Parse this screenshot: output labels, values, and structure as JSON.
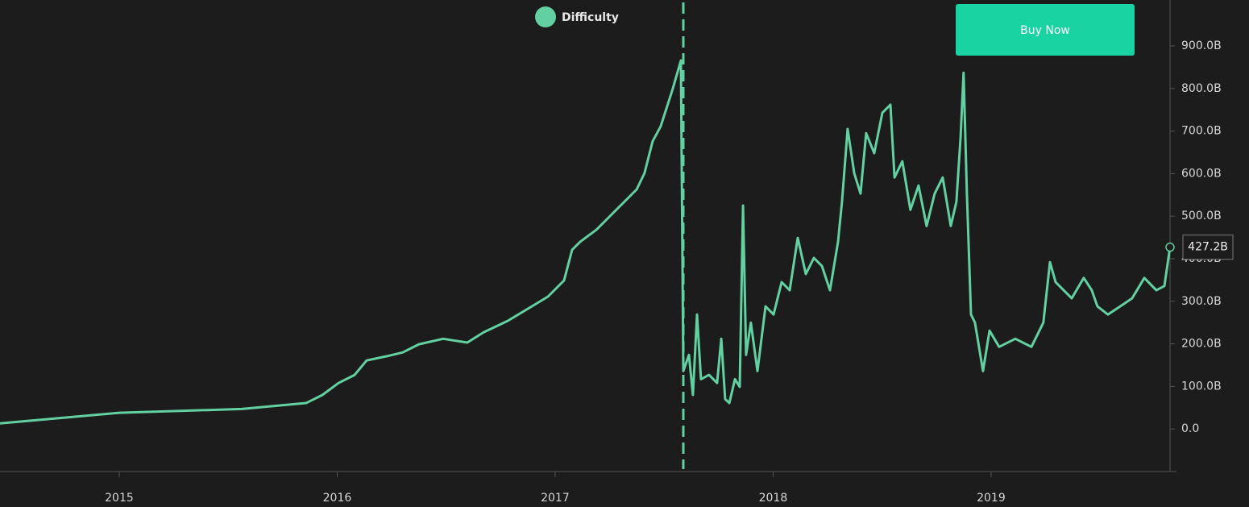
{
  "chart_data": {
    "type": "line",
    "title": "Difficulty",
    "x": [
      2014.453,
      2015.0,
      2015.562,
      2015.858,
      2015.932,
      2016.006,
      2016.08,
      2016.135,
      2016.228,
      2016.301,
      2016.375,
      2016.486,
      2016.597,
      2016.671,
      2016.782,
      2016.893,
      2016.967,
      2017.041,
      2017.078,
      2017.115,
      2017.189,
      2017.263,
      2017.3,
      2017.374,
      2017.41,
      2017.447,
      2017.484,
      2017.54,
      2017.577,
      2017.588,
      2017.614,
      2017.632,
      2017.651,
      2017.669,
      2017.706,
      2017.743,
      2017.762,
      2017.78,
      2017.799,
      2017.825,
      2017.847,
      2017.862,
      2017.876,
      2017.898,
      2017.928,
      2017.965,
      2018.002,
      2018.039,
      2018.076,
      2018.113,
      2018.15,
      2018.187,
      2018.224,
      2018.261,
      2018.298,
      2018.316,
      2018.342,
      2018.372,
      2018.401,
      2018.427,
      2018.464,
      2018.501,
      2018.538,
      2018.557,
      2018.593,
      2018.63,
      2018.667,
      2018.704,
      2018.741,
      2018.778,
      2018.815,
      2018.841,
      2018.86,
      2018.874,
      2018.889,
      2018.908,
      2018.926,
      2018.963,
      2018.993,
      2019.037,
      2019.111,
      2019.185,
      2019.24,
      2019.27,
      2019.296,
      2019.333,
      2019.37,
      2019.425,
      2019.462,
      2019.488,
      2019.536,
      2019.592,
      2019.647,
      2019.703,
      2019.758,
      2019.795,
      2019.821
    ],
    "series": [
      {
        "name": "Difficulty",
        "color": "#62d0a0",
        "values": [
          13,
          38,
          47,
          61,
          80,
          108,
          127,
          161,
          171,
          180,
          199,
          212,
          203,
          227,
          254,
          288,
          311,
          349,
          421,
          440,
          468,
          506,
          525,
          563,
          601,
          676,
          711,
          800,
          866,
          136,
          174,
          80,
          269,
          117,
          127,
          108,
          212,
          70,
          61,
          117,
          99,
          525,
          174,
          250,
          136,
          288,
          269,
          345,
          326,
          449,
          364,
          402,
          383,
          326,
          440,
          534,
          705,
          601,
          553,
          695,
          648,
          743,
          762,
          591,
          629,
          515,
          572,
          477,
          553,
          591,
          477,
          534,
          686,
          837,
          553,
          269,
          250,
          136,
          231,
          193,
          212,
          193,
          250,
          392,
          345,
          326,
          307,
          355,
          326,
          288,
          269,
          288,
          307,
          355,
          326,
          336,
          427.2
        ]
      }
    ],
    "end_label": "427.2B",
    "vline": 2017.588,
    "xlim": [
      2014.453,
      2019.821
    ],
    "xticks": [
      2015,
      2016,
      2017,
      2018,
      2019
    ],
    "ylim": [
      -100,
      1008
    ],
    "yticks": [
      {
        "value": 0,
        "label": "0.0"
      },
      {
        "value": 100,
        "label": "100.0B"
      },
      {
        "value": 200,
        "label": "200.0B"
      },
      {
        "value": 300,
        "label": "300.0B"
      },
      {
        "value": 400,
        "label": "400.0B"
      },
      {
        "value": 500,
        "label": "500.0B"
      },
      {
        "value": 600,
        "label": "600.0B"
      },
      {
        "value": 700,
        "label": "700.0B"
      },
      {
        "value": 800,
        "label": "800.0B"
      },
      {
        "value": 900,
        "label": "900.0B"
      }
    ]
  },
  "button": {
    "label": "Buy Now"
  }
}
